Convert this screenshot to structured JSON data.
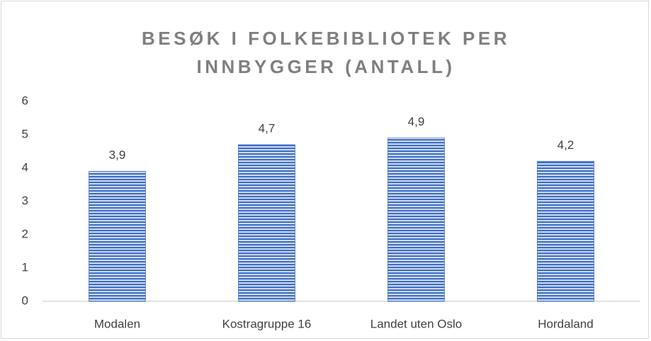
{
  "chart_data": {
    "type": "bar",
    "title": "BESØK I FOLKEBIBLIOTEK PER INNBYGGER (ANTALL)",
    "categories": [
      "Modalen",
      "Kostragruppe 16",
      "Landet uten Oslo",
      "Hordaland"
    ],
    "values": [
      3.9,
      4.7,
      4.9,
      4.2
    ],
    "value_labels": [
      "3,9",
      "4,7",
      "4,9",
      "4,2"
    ],
    "color": "#4472c4",
    "ylim": [
      0,
      6
    ],
    "yticks": [
      0,
      1,
      2,
      3,
      4,
      5,
      6
    ],
    "grid": false
  }
}
